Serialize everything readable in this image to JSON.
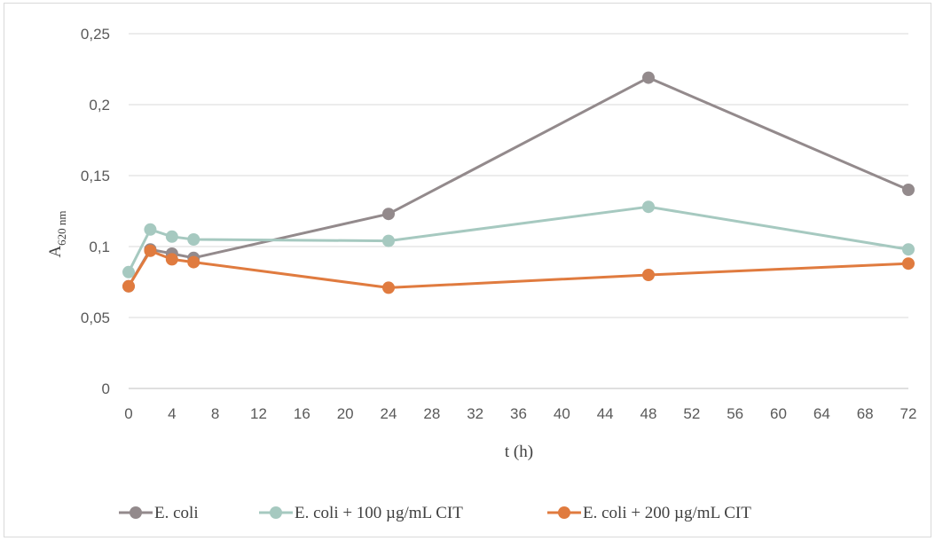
{
  "chart_data": {
    "type": "line",
    "xlabel": "t (h)",
    "ylabel": {
      "main": "A",
      "sub": "620 nm"
    },
    "xlim": [
      0,
      72
    ],
    "ylim": [
      0,
      0.25
    ],
    "x_ticks": [
      "0",
      "4",
      "8",
      "12",
      "16",
      "20",
      "24",
      "28",
      "32",
      "36",
      "40",
      "44",
      "48",
      "52",
      "56",
      "60",
      "64",
      "68",
      "72"
    ],
    "y_ticks": [
      "0",
      "0,05",
      "0,1",
      "0,15",
      "0,2",
      "0,25"
    ],
    "grid": true,
    "legend_position": "bottom",
    "series": [
      {
        "name": "E. coli",
        "color": "#938a8c",
        "x": [
          0,
          2,
          4,
          6,
          24,
          48,
          72
        ],
        "y": [
          0.072,
          0.098,
          0.095,
          0.092,
          0.123,
          0.219,
          0.14
        ]
      },
      {
        "name": "E. coli + 100 µg/mL CIT",
        "color": "#a6c9c0",
        "x": [
          0,
          2,
          4,
          6,
          24,
          48,
          72
        ],
        "y": [
          0.082,
          0.112,
          0.107,
          0.105,
          0.104,
          0.128,
          0.098
        ]
      },
      {
        "name": "E. coli + 200 µg/mL CIT",
        "color": "#e07b3f",
        "x": [
          0,
          2,
          4,
          6,
          24,
          48,
          72
        ],
        "y": [
          0.072,
          0.097,
          0.091,
          0.089,
          0.071,
          0.08,
          0.088
        ]
      }
    ]
  }
}
